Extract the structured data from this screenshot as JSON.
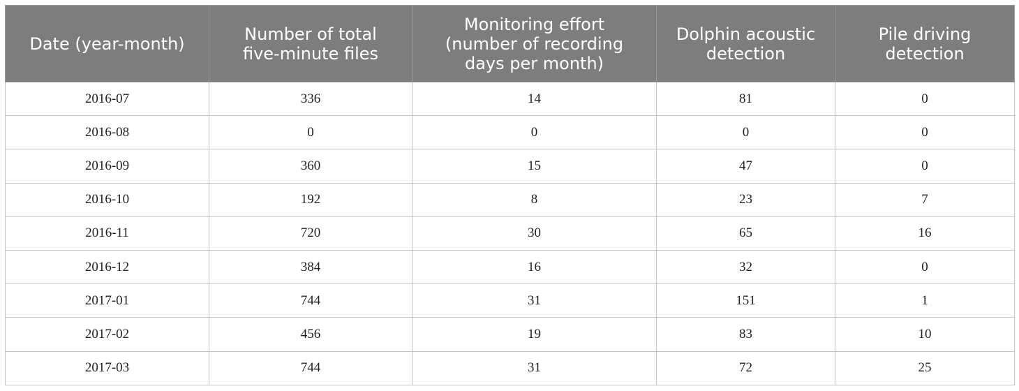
{
  "table": {
    "headers": [
      "Date (year-month)",
      "Number of total five-minute files",
      "Monitoring effort (number of recording days per month)",
      "Dolphin acoustic detection",
      "Pile driving detection"
    ],
    "header_lines": [
      [
        "Date (year-month)"
      ],
      [
        "Number of total",
        "five-minute files"
      ],
      [
        "Monitoring effort",
        "(number of recording",
        "days per month)"
      ],
      [
        "Dolphin acoustic",
        "detection"
      ],
      [
        "Pile driving",
        "detection"
      ]
    ],
    "rows": [
      [
        "2016-07",
        "336",
        "14",
        "81",
        "0"
      ],
      [
        "2016-08",
        "0",
        "0",
        "0",
        "0"
      ],
      [
        "2016-09",
        "360",
        "15",
        "47",
        "0"
      ],
      [
        "2016-10",
        "192",
        "8",
        "23",
        "7"
      ],
      [
        "2016-11",
        "720",
        "30",
        "65",
        "16"
      ],
      [
        "2016-12",
        "384",
        "16",
        "32",
        "0"
      ],
      [
        "2017-01",
        "744",
        "31",
        "151",
        "1"
      ],
      [
        "2017-02",
        "456",
        "19",
        "83",
        "10"
      ],
      [
        "2017-03",
        "744",
        "31",
        "72",
        "25"
      ]
    ]
  },
  "colors": {
    "header_background": "#7d7e7c",
    "header_text": "#ffffff",
    "body_text": "#222222",
    "grid_line": "#c4c4c4"
  }
}
